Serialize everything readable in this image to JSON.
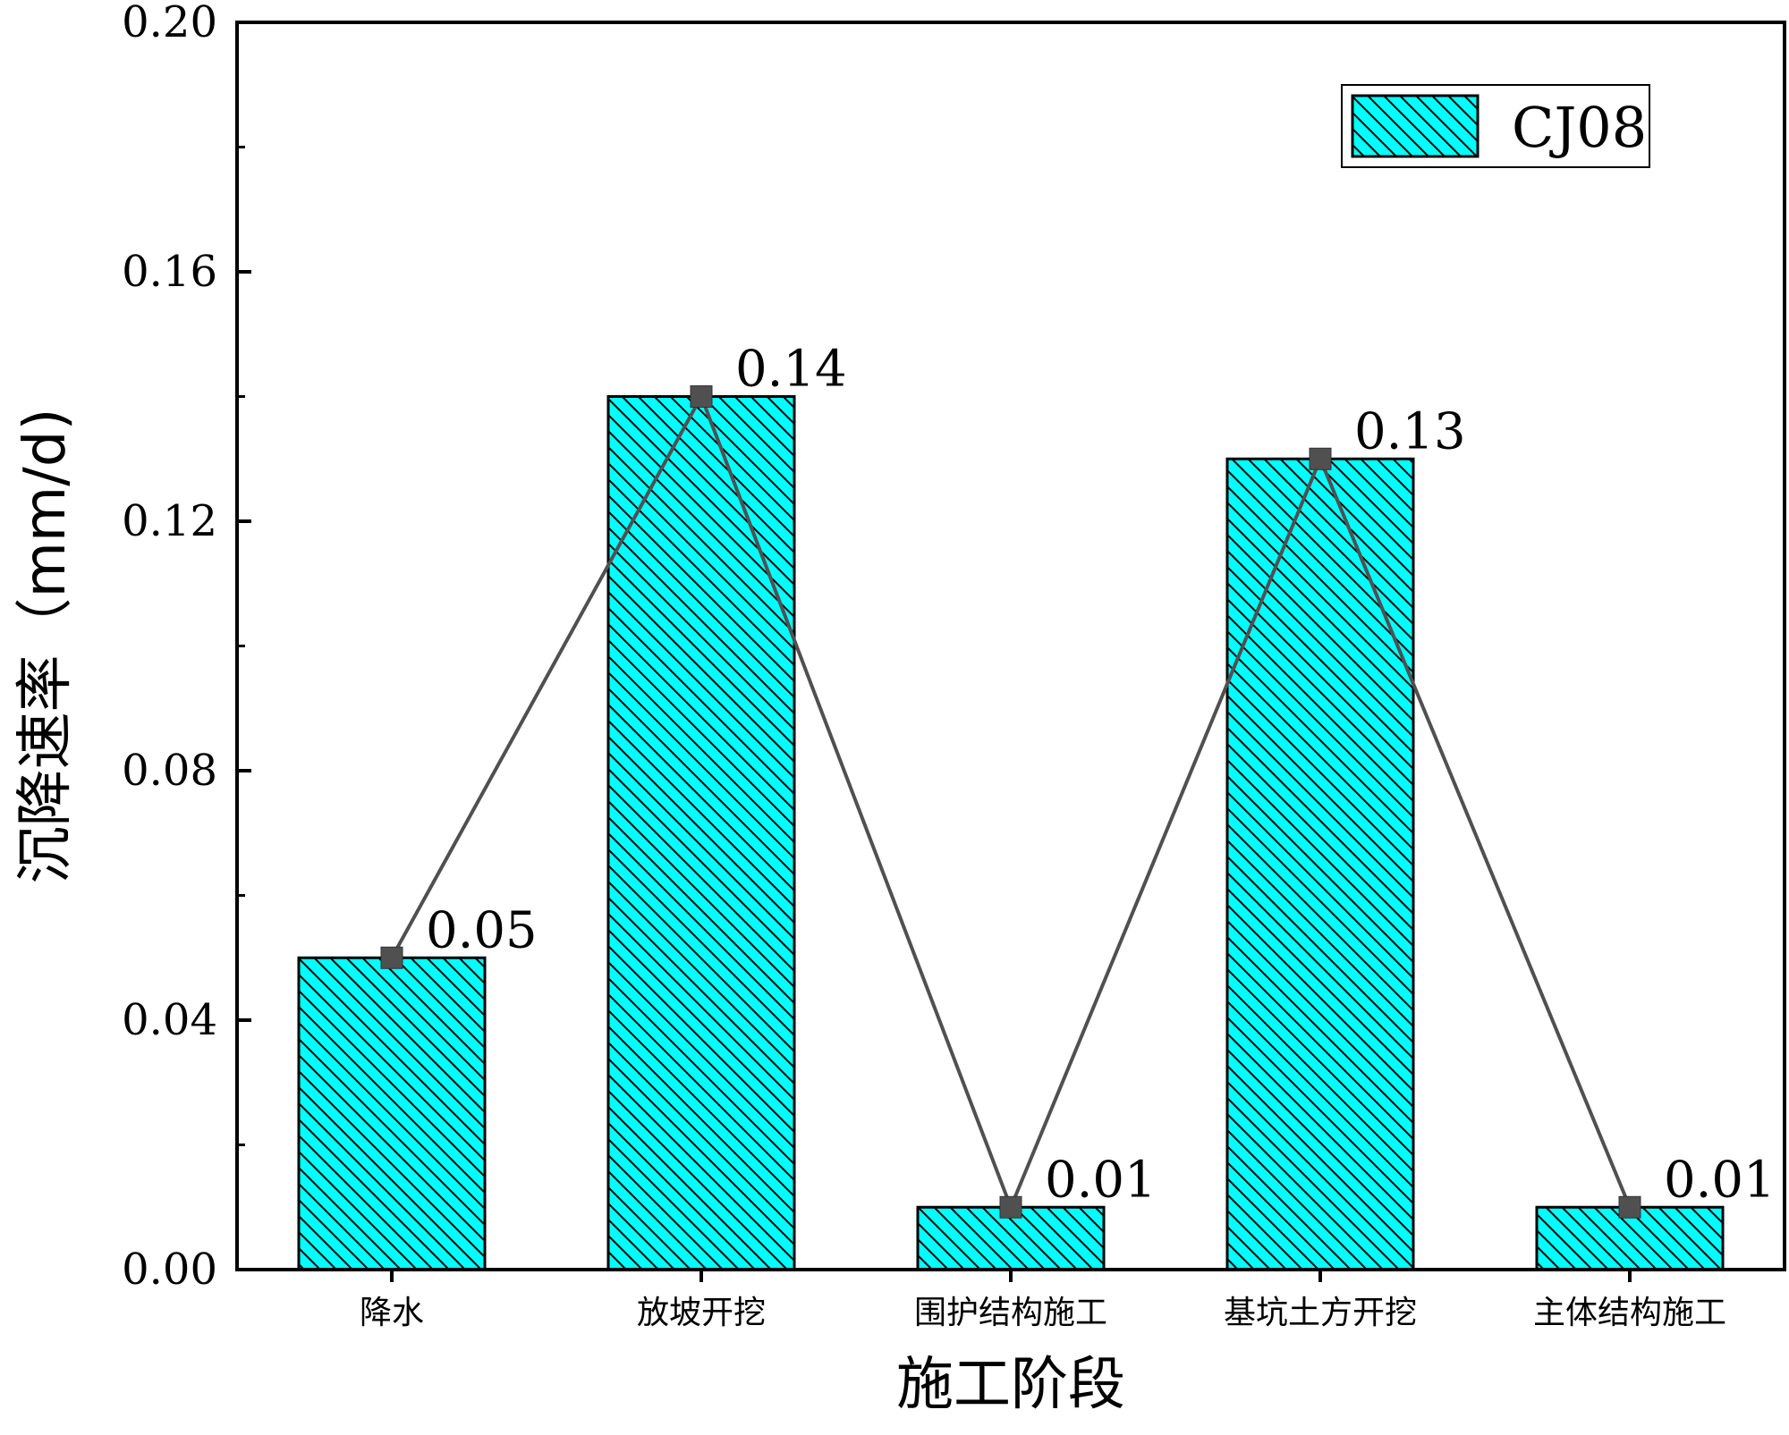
{
  "chart_data": {
    "type": "bar",
    "categories": [
      "降水",
      "放坡开挖",
      "围护结构施工",
      "基坑土方开挖",
      "主体结构施工"
    ],
    "series": [
      {
        "name": "CJ08",
        "values": [
          0.05,
          0.14,
          0.01,
          0.13,
          0.01
        ],
        "data_labels": [
          "0.05",
          "0.14",
          "0.01",
          "0.13",
          "0.01"
        ],
        "overlay": "line-with-square-markers",
        "color": "#00FFFF",
        "line_color": "#505050"
      }
    ],
    "title": "",
    "xlabel": "施工阶段",
    "ylabel": "沉降速率（mm/d)",
    "ylim": [
      0,
      0.2
    ],
    "yticks": [
      0.0,
      0.04,
      0.08,
      0.12,
      0.16,
      0.2
    ],
    "ytick_labels": [
      "0.00",
      "0.04",
      "0.08",
      "0.12",
      "0.16",
      "0.20"
    ],
    "legend": {
      "position": "top-right",
      "entries": [
        "CJ08"
      ]
    },
    "grid": false
  }
}
